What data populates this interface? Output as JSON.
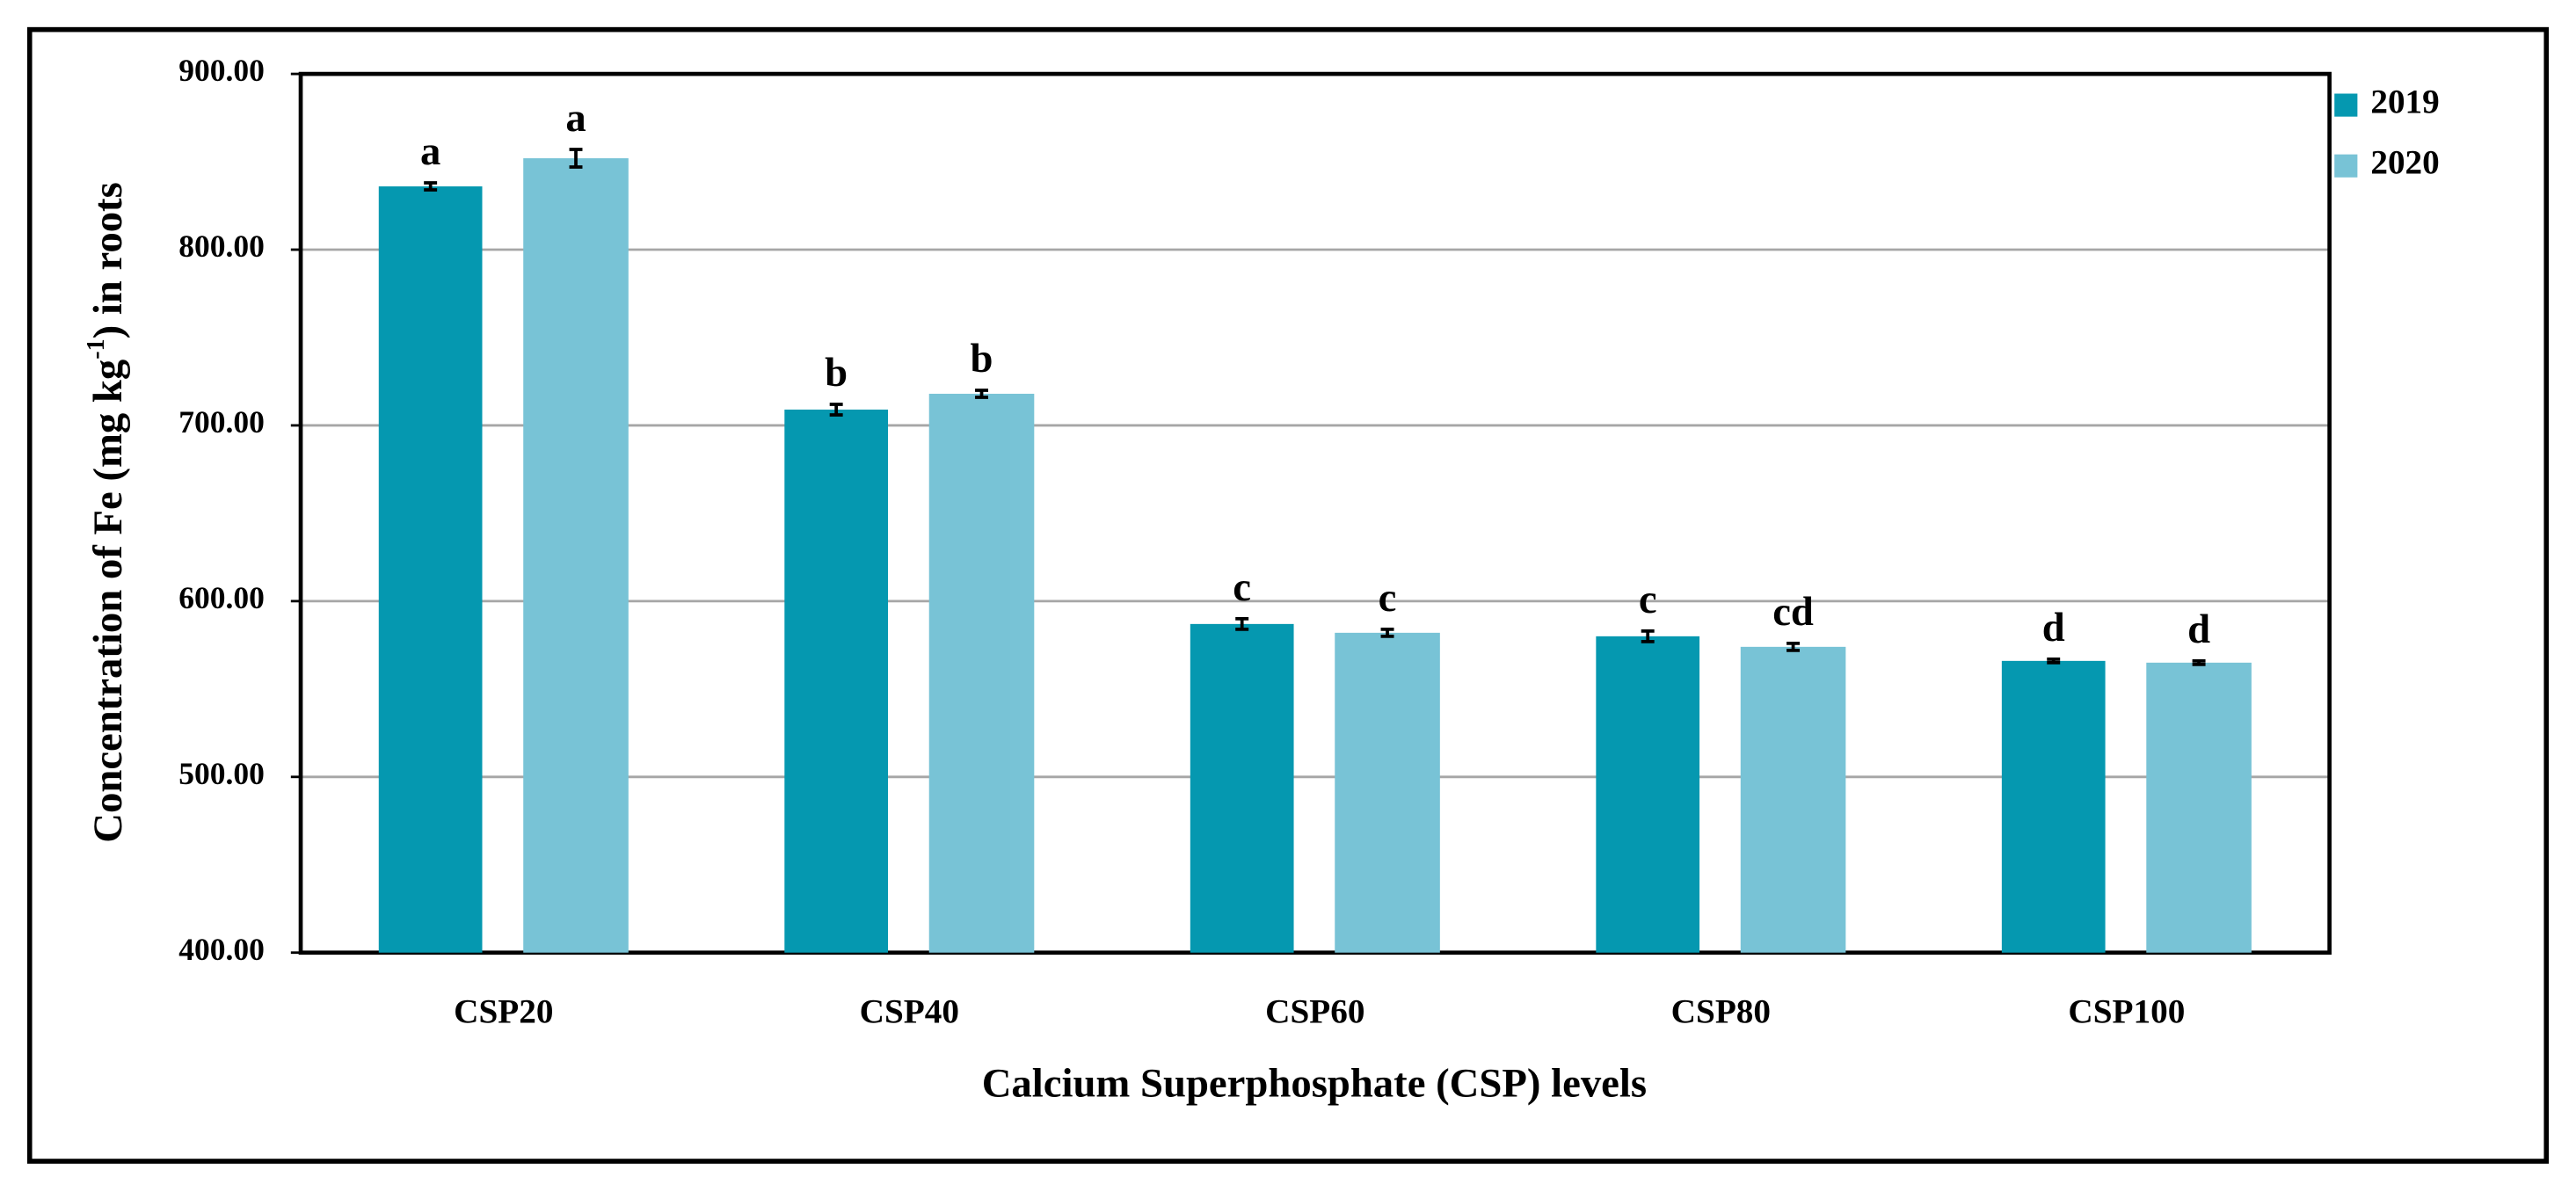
{
  "chart_data": {
    "type": "bar",
    "xlabel": "Calcium Superphosphate (CSP) levels",
    "ylabel": "Concentration of Fe (mg kg",
    "ylabel_sup": "-1",
    "ylabel_end": ") in roots",
    "categories": [
      "CSP20",
      "CSP40",
      "CSP60",
      "CSP80",
      "CSP100"
    ],
    "series": [
      {
        "name": "2019",
        "color": "#0598b0",
        "values": [
          836,
          709,
          587,
          580,
          566
        ],
        "errors": [
          2,
          3,
          3,
          3,
          1
        ],
        "letters": [
          "a",
          "b",
          "c",
          "c",
          "d"
        ]
      },
      {
        "name": "2020",
        "color": "#78c3d6",
        "values": [
          852,
          718,
          582,
          574,
          565
        ],
        "errors": [
          5,
          2,
          2,
          2,
          1
        ],
        "letters": [
          "a",
          "b",
          "c",
          "cd",
          "d"
        ]
      }
    ],
    "ylim": [
      400,
      900
    ],
    "yticks": [
      {
        "value": 400,
        "label": "400.00"
      },
      {
        "value": 500,
        "label": "500.00"
      },
      {
        "value": 600,
        "label": "600.00"
      },
      {
        "value": 700,
        "label": "700.00"
      },
      {
        "value": 800,
        "label": "800.00"
      },
      {
        "value": 900,
        "label": "900.00"
      }
    ],
    "grid": true,
    "legend": "right"
  }
}
